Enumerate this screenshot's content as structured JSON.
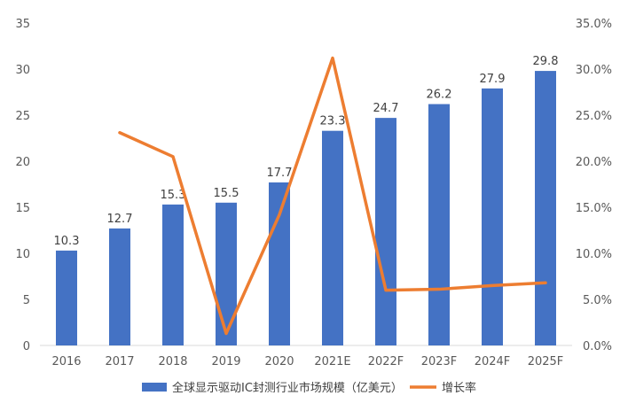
{
  "chart_data": {
    "type": "bar",
    "categories": [
      "2016",
      "2017",
      "2018",
      "2019",
      "2020",
      "2021E",
      "2022F",
      "2023F",
      "2024F",
      "2025F"
    ],
    "series": [
      {
        "name": "全球显示驱动IC封测行业市场规模（亿美元）",
        "type": "bar",
        "axis": "left",
        "color": "#4472C4",
        "values": [
          10.3,
          12.7,
          15.3,
          15.5,
          17.7,
          23.3,
          24.7,
          26.2,
          27.9,
          29.8
        ],
        "labels": [
          "10.3",
          "12.7",
          "15.3",
          "15.5",
          "17.7",
          "23.3",
          "24.7",
          "26.2",
          "27.9",
          "29.8"
        ]
      },
      {
        "name": "增长率",
        "type": "line",
        "axis": "right",
        "color": "#ED7D31",
        "values": [
          null,
          23.1,
          20.5,
          1.3,
          14.2,
          31.2,
          6.0,
          6.1,
          6.5,
          6.8
        ]
      }
    ],
    "y_left": {
      "min": 0,
      "max": 35,
      "step": 5,
      "ticks": [
        "0",
        "5",
        "10",
        "15",
        "20",
        "25",
        "30",
        "35"
      ]
    },
    "y_right": {
      "min": 0,
      "max": 35,
      "step": 5,
      "ticks": [
        "0.0%",
        "5.0%",
        "10.0%",
        "15.0%",
        "20.0%",
        "25.0%",
        "30.0%",
        "35.0%"
      ]
    },
    "grid": false,
    "legend_position": "bottom"
  }
}
